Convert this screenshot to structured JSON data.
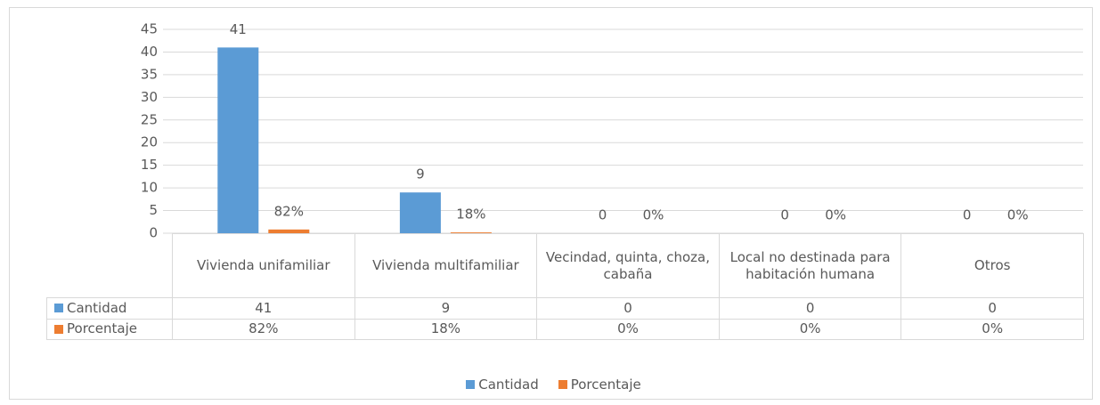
{
  "chart_data": {
    "type": "bar",
    "categories": [
      "Vivienda unifamiliar",
      "Vivienda multifamiliar",
      "Vecindad, quinta, choza, cabaña",
      "Local no destinada para habitación humana",
      "Otros"
    ],
    "series": [
      {
        "name": "Cantidad",
        "color": "#5b9bd5",
        "values": [
          41,
          9,
          0,
          0,
          0
        ]
      },
      {
        "name": "Porcentaje",
        "color": "#ed7d31",
        "values": [
          0.82,
          0.18,
          0,
          0,
          0
        ],
        "value_labels": [
          "82%",
          "18%",
          "0%",
          "0%",
          "0%"
        ]
      }
    ],
    "ylim": [
      0,
      45
    ],
    "yticks": [
      0,
      5,
      10,
      15,
      20,
      25,
      30,
      35,
      40,
      45
    ],
    "grid": true,
    "legend": "bottom"
  }
}
